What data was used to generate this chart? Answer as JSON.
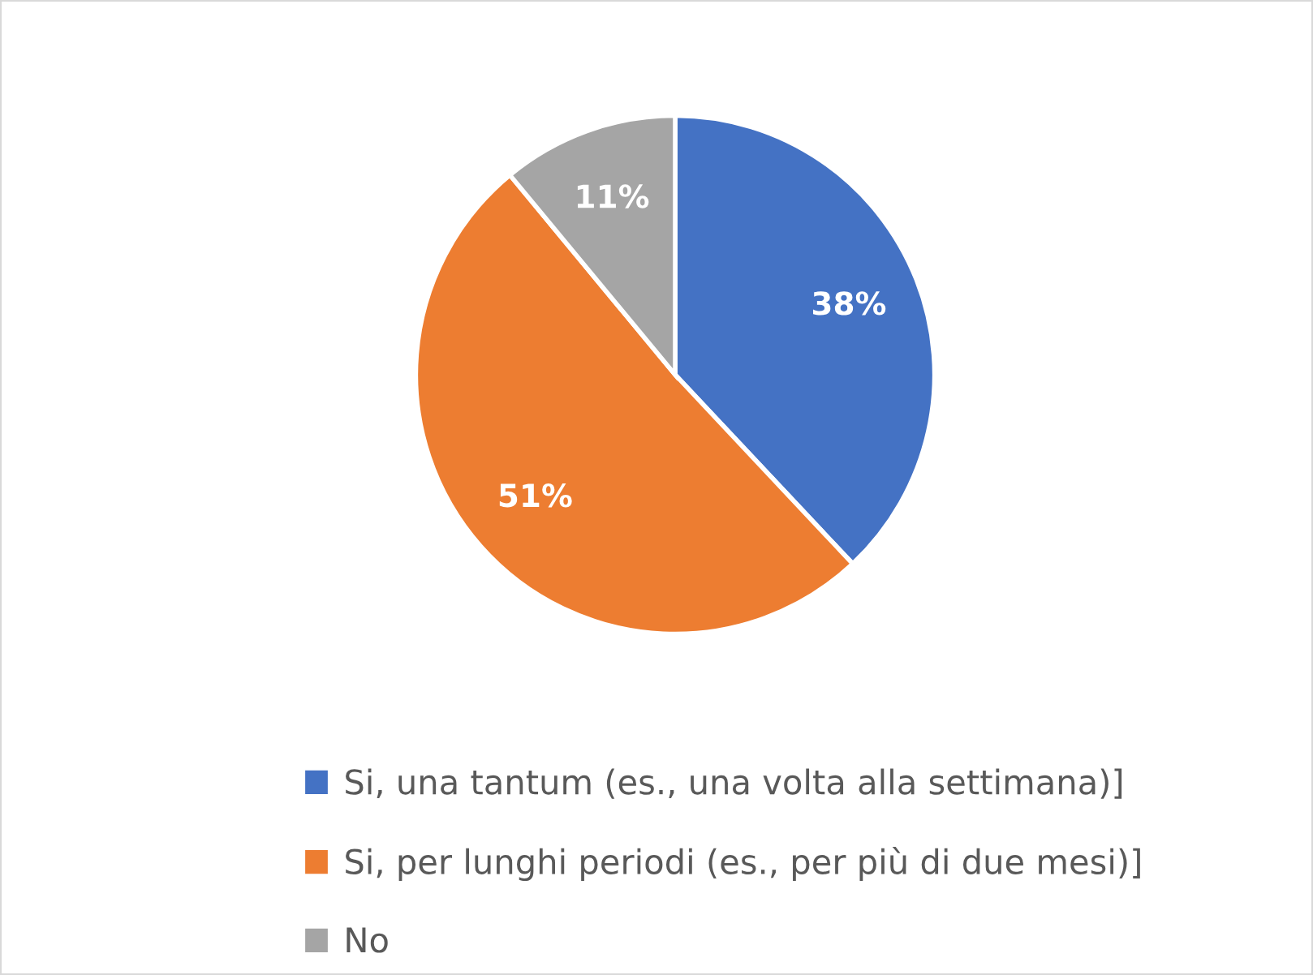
{
  "chart_data": {
    "type": "pie",
    "categories": [
      "Si, una tantum (es., una volta alla settimana)]",
      "Si, per lunghi periodi (es., per più di due mesi)]",
      "No"
    ],
    "values": [
      38,
      51,
      11
    ],
    "colors": [
      "#4472c4",
      "#ed7d31",
      "#a5a5a5"
    ],
    "value_labels": [
      "38%",
      "51%",
      "11%"
    ],
    "legend": "bottom"
  }
}
